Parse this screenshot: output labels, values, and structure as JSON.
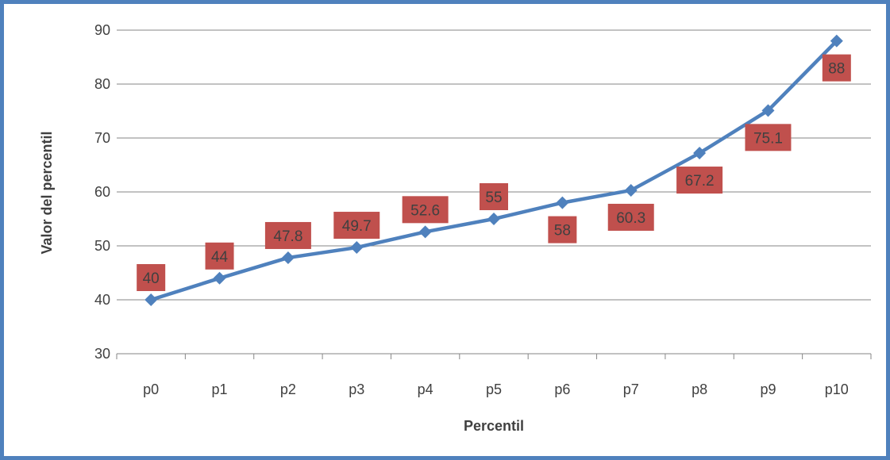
{
  "colors": {
    "frame": "#4f81bd",
    "series": "#4f81bd",
    "label_box": "#c0504d",
    "grid": "#868686",
    "text": "#404040"
  },
  "chart_data": {
    "type": "line",
    "title": "",
    "xlabel": "Percentil",
    "ylabel": "Valor del percentil",
    "categories": [
      "p0",
      "p1",
      "p2",
      "p3",
      "p4",
      "p5",
      "p6",
      "p7",
      "p8",
      "p9",
      "p10"
    ],
    "series": [
      {
        "name": "",
        "values": [
          40,
          44,
          47.8,
          49.7,
          52.6,
          55,
          58,
          60.3,
          67.2,
          75.1,
          88
        ],
        "data_labels": [
          "40",
          "44",
          "47.8",
          "49.7",
          "52.6",
          "55",
          "58",
          "60.3",
          "67.2",
          "75.1",
          "88"
        ],
        "marker": "diamond"
      }
    ],
    "ylim": [
      30,
      90
    ],
    "yticks": [
      "30",
      "40",
      "50",
      "60",
      "70",
      "80",
      "90"
    ],
    "grid": true,
    "legend": "none"
  }
}
